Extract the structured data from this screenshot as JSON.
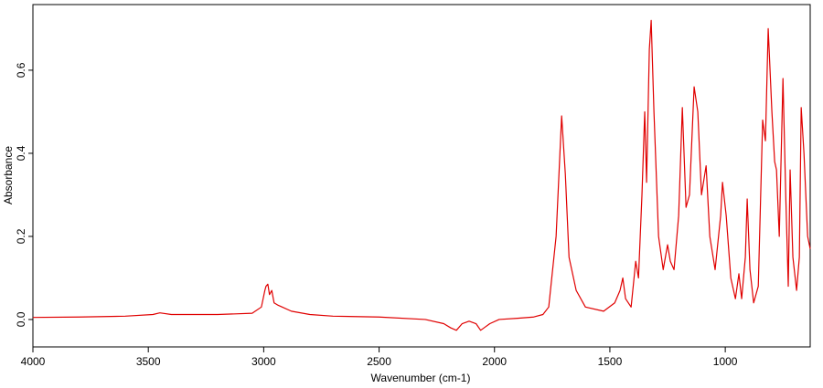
{
  "chart_data": {
    "type": "line",
    "xlabel": "Wavenumber (cm-1)",
    "ylabel": "Absorbance",
    "xlim": [
      4000,
      632
    ],
    "ylim": [
      -0.066,
      0.758
    ],
    "xticks": [
      4000,
      3500,
      3000,
      2500,
      2000,
      1500,
      1000
    ],
    "yticks": [
      {
        "value": 0,
        "label": "0.0"
      },
      0.2,
      0.4,
      0.6
    ],
    "grid": false,
    "series": [
      {
        "color": "#e00000",
        "x": [
          4000,
          3800,
          3600,
          3480,
          3450,
          3400,
          3200,
          3050,
          3010,
          2995,
          2990,
          2982,
          2975,
          2965,
          2955,
          2940,
          2920,
          2880,
          2800,
          2700,
          2500,
          2300,
          2220,
          2190,
          2165,
          2140,
          2110,
          2080,
          2060,
          2045,
          2020,
          1980,
          1900,
          1830,
          1790,
          1765,
          1733,
          1709,
          1693,
          1677,
          1646,
          1606,
          1527,
          1479,
          1456,
          1444,
          1432,
          1408,
          1388,
          1376,
          1361,
          1349,
          1341,
          1329,
          1321,
          1309,
          1289,
          1269,
          1250,
          1238,
          1222,
          1202,
          1186,
          1170,
          1155,
          1135,
          1119,
          1103,
          1083,
          1067,
          1044,
          1020,
          1012,
          996,
          976,
          956,
          941,
          929,
          913,
          905,
          893,
          877,
          857,
          838,
          826,
          814,
          798,
          786,
          778,
          766,
          750,
          738,
          727,
          719,
          707,
          691,
          679,
          671,
          659,
          643,
          632
        ],
        "values": [
          0.005,
          0.006,
          0.008,
          0.012,
          0.016,
          0.012,
          0.012,
          0.015,
          0.03,
          0.07,
          0.08,
          0.085,
          0.06,
          0.07,
          0.04,
          0.035,
          0.03,
          0.02,
          0.012,
          0.008,
          0.006,
          0.0,
          -0.01,
          -0.02,
          -0.026,
          -0.01,
          -0.004,
          -0.01,
          -0.026,
          -0.02,
          -0.01,
          0.0,
          0.003,
          0.006,
          0.012,
          0.03,
          0.2,
          0.49,
          0.35,
          0.15,
          0.07,
          0.03,
          0.02,
          0.04,
          0.07,
          0.1,
          0.05,
          0.03,
          0.14,
          0.1,
          0.3,
          0.5,
          0.33,
          0.65,
          0.72,
          0.5,
          0.2,
          0.12,
          0.18,
          0.14,
          0.12,
          0.25,
          0.51,
          0.27,
          0.3,
          0.56,
          0.5,
          0.3,
          0.37,
          0.2,
          0.12,
          0.25,
          0.33,
          0.25,
          0.1,
          0.05,
          0.11,
          0.05,
          0.15,
          0.29,
          0.12,
          0.04,
          0.08,
          0.48,
          0.43,
          0.7,
          0.5,
          0.38,
          0.36,
          0.2,
          0.58,
          0.3,
          0.08,
          0.36,
          0.15,
          0.07,
          0.15,
          0.51,
          0.4,
          0.2,
          0.17
        ]
      }
    ]
  }
}
